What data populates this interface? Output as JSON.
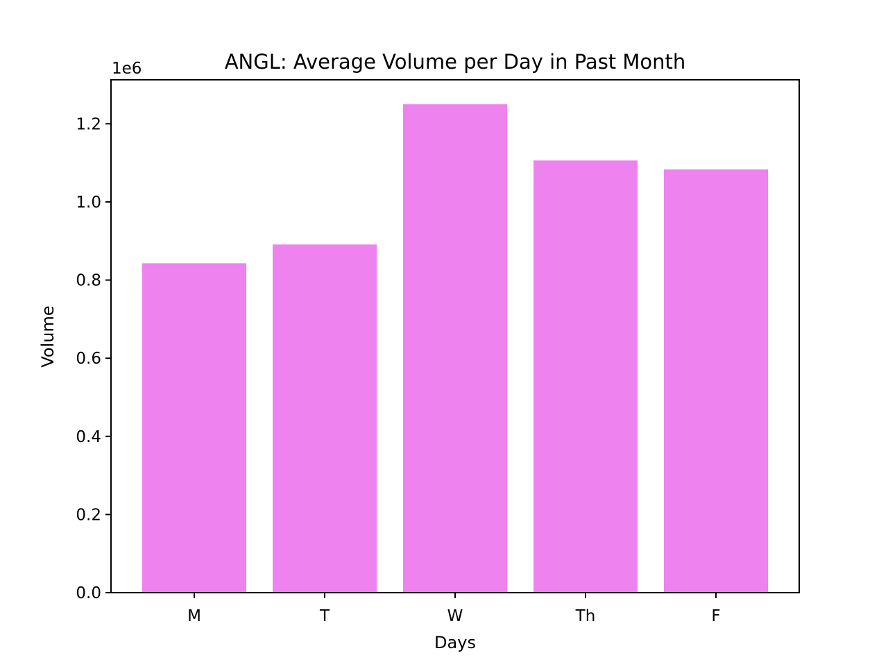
{
  "chart_data": {
    "type": "bar",
    "title": "ANGL: Average Volume per Day in Past Month",
    "xlabel": "Days",
    "ylabel": "Volume",
    "y_offset_label": "1e6",
    "categories": [
      "M",
      "T",
      "W",
      "Th",
      "F"
    ],
    "values": [
      843000,
      891000,
      1250000,
      1106000,
      1083000
    ],
    "ylim": [
      0,
      1312500
    ],
    "yticks": [
      0,
      200000,
      400000,
      600000,
      800000,
      1000000,
      1200000
    ],
    "ytick_labels": [
      "0.0",
      "0.2",
      "0.4",
      "0.6",
      "0.8",
      "1.0",
      "1.2"
    ],
    "bar_color": "#ee82ee",
    "grid": false,
    "legend": "none"
  }
}
